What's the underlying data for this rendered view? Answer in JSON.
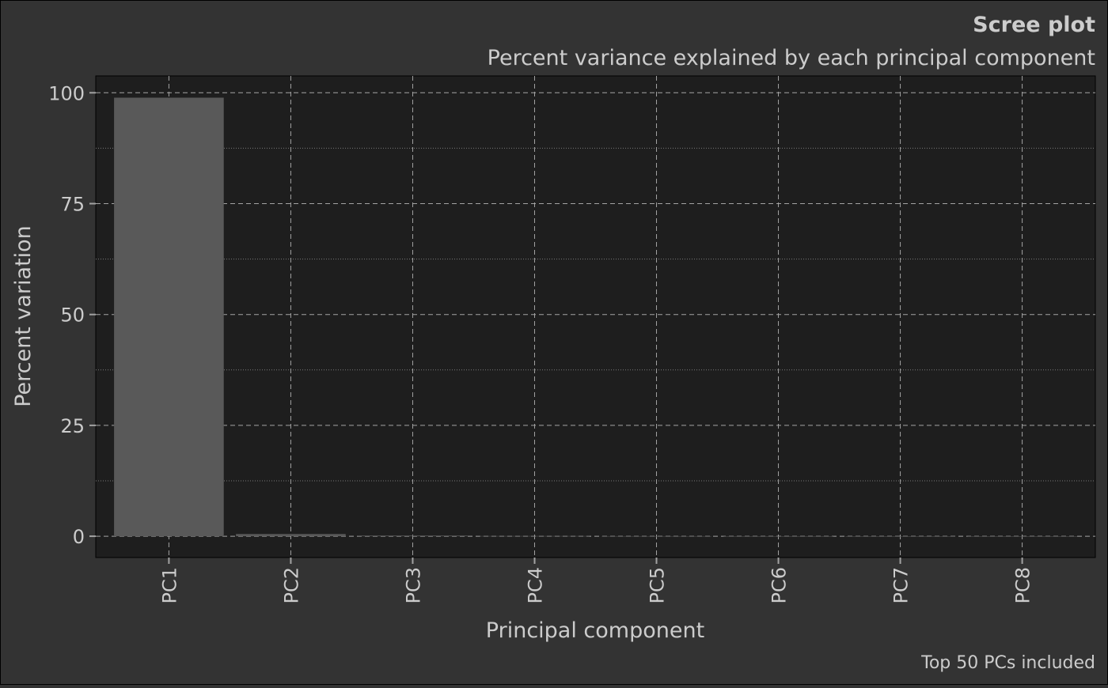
{
  "chart_data": {
    "type": "bar",
    "title": "Scree plot",
    "subtitle": "Percent variance explained by each principal component",
    "xlabel": "Principal component",
    "ylabel": "Percent variation",
    "caption": "Top 50 PCs included",
    "categories": [
      "PC1",
      "PC2",
      "PC3",
      "PC4",
      "PC5",
      "PC6",
      "PC7",
      "PC8"
    ],
    "values": [
      98.9,
      0.5,
      0.15,
      0.05,
      0.03,
      0.02,
      0.01,
      0.01
    ],
    "ylim": [
      -4.8,
      103.8
    ],
    "yticks": [
      0,
      25,
      50,
      75,
      100
    ],
    "grid": true,
    "legend": "none"
  },
  "colors": {
    "page_background": "#333333",
    "panel_background": "#1e1e1e",
    "bar_fill": "#595959",
    "grid_major": "#a3a3a3",
    "grid_minor": "#7a7a7a",
    "text": "#cccccc",
    "axis_ticks": "#a3a3a3"
  }
}
